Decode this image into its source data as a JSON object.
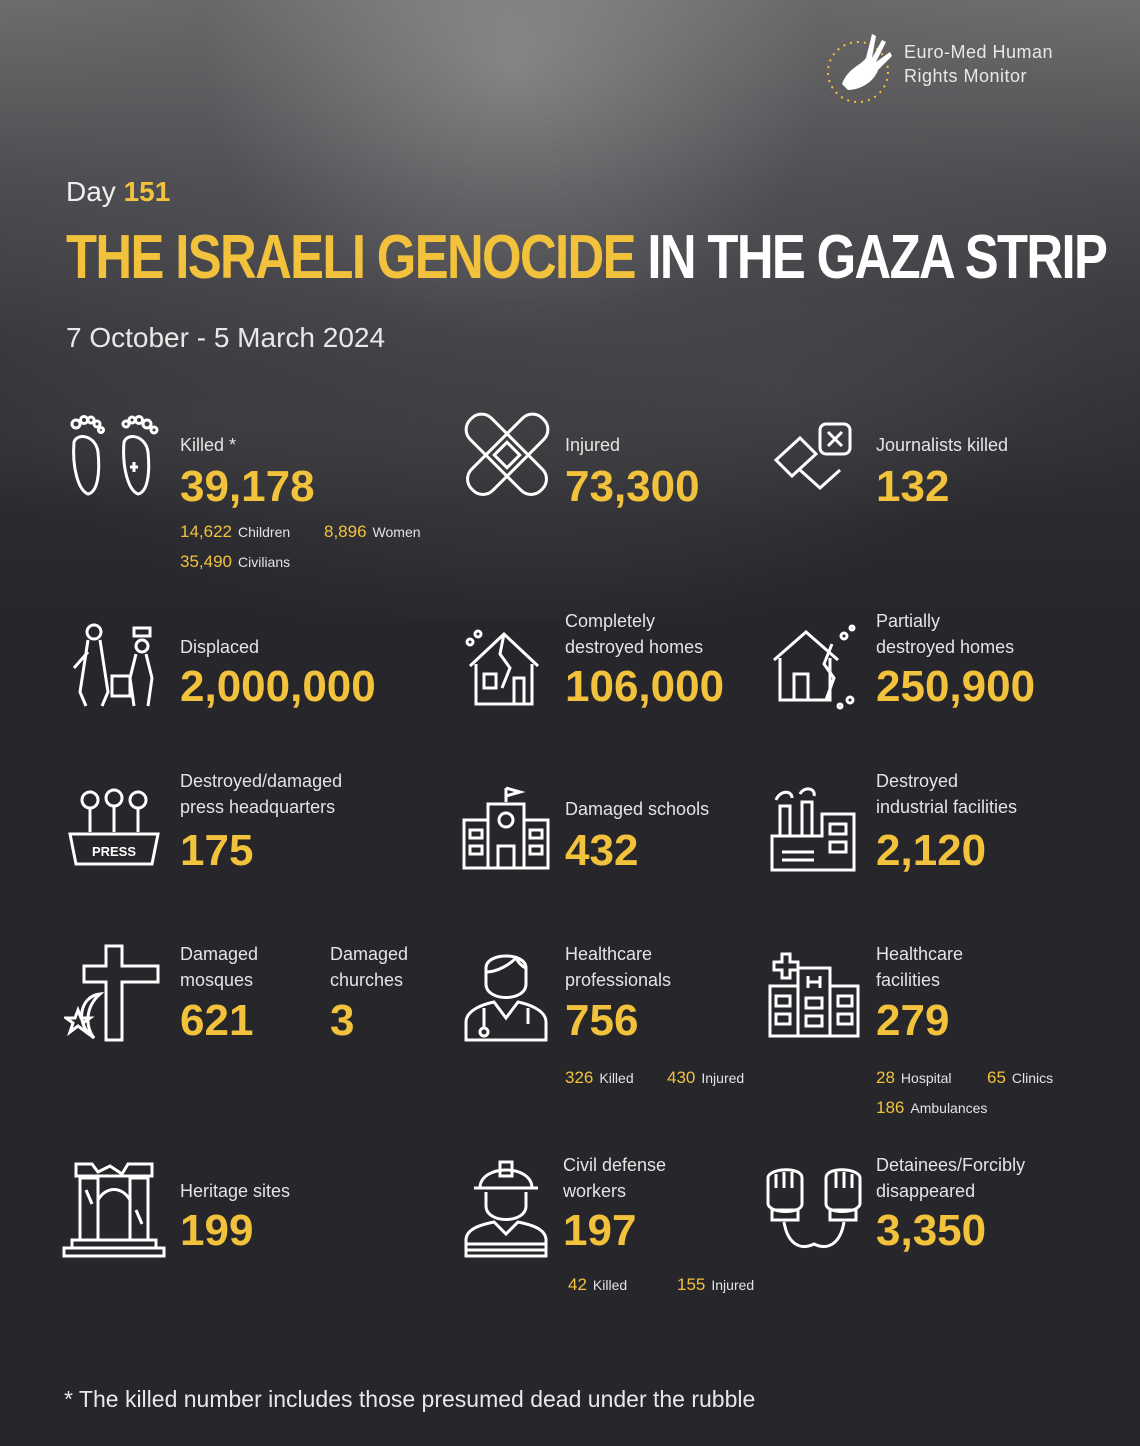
{
  "colors": {
    "accent": "#f2c23c",
    "background": "#26262b",
    "text": "#ffffff"
  },
  "logo": {
    "line1": "Euro-Med Human",
    "line2": "Rights Monitor",
    "icon": "dove-hand-icon"
  },
  "header": {
    "day_prefix": "Day",
    "day_number": "151",
    "title_highlight": "THE ISRAELI GENOCIDE",
    "title_rest": "IN THE GAZA STRIP",
    "date_range": "7 October - 5 March 2024"
  },
  "stats": {
    "killed": {
      "label": "Killed *",
      "value": "39,178",
      "children_value": "14,622",
      "children_label": "Children",
      "women_value": "8,896",
      "women_label": "Women",
      "civilians_value": "35,490",
      "civilians_label": "Civilians"
    },
    "injured": {
      "label": "Injured",
      "value": "73,300"
    },
    "journalists": {
      "label": "Journalists killed",
      "value": "132"
    },
    "displaced": {
      "label": "Displaced",
      "value": "2,000,000"
    },
    "destroyed_homes": {
      "label1": "Completely",
      "label2": "destroyed homes",
      "value": "106,000"
    },
    "partial_homes": {
      "label1": "Partially",
      "label2": "destroyed homes",
      "value": "250,900"
    },
    "press": {
      "label1": "Destroyed/damaged",
      "label2": "press headquarters",
      "value": "175",
      "sign": "PRESS"
    },
    "schools": {
      "label": "Damaged schools",
      "value": "432"
    },
    "industrial": {
      "label1": "Destroyed",
      "label2": "industrial facilities",
      "value": "2,120"
    },
    "mosques": {
      "label1": "Damaged",
      "label2": "mosques",
      "value": "621"
    },
    "churches": {
      "label1": "Damaged",
      "label2": "churches",
      "value": "3"
    },
    "health_pros": {
      "label1": "Healthcare",
      "label2": "professionals",
      "value": "756",
      "killed_value": "326",
      "killed_label": "Killed",
      "injured_value": "430",
      "injured_label": "Injured"
    },
    "health_fac": {
      "label1": "Healthcare",
      "label2": "facilities",
      "value": "279",
      "hospital_value": "28",
      "hospital_label": "Hospital",
      "clinics_value": "65",
      "clinics_label": "Clinics",
      "ambulances_value": "186",
      "ambulances_label": "Ambulances"
    },
    "heritage": {
      "label": "Heritage sites",
      "value": "199"
    },
    "civil_defense": {
      "label1": "Civil defense",
      "label2": "workers",
      "value": "197",
      "killed_value": "42",
      "killed_label": "Killed",
      "injured_value": "155",
      "injured_label": "Injured"
    },
    "detainees": {
      "label1": "Detainees/Forcibly",
      "label2": "disappeared",
      "value": "3,350"
    }
  },
  "footnote": "* The killed number includes those presumed dead under the rubble"
}
